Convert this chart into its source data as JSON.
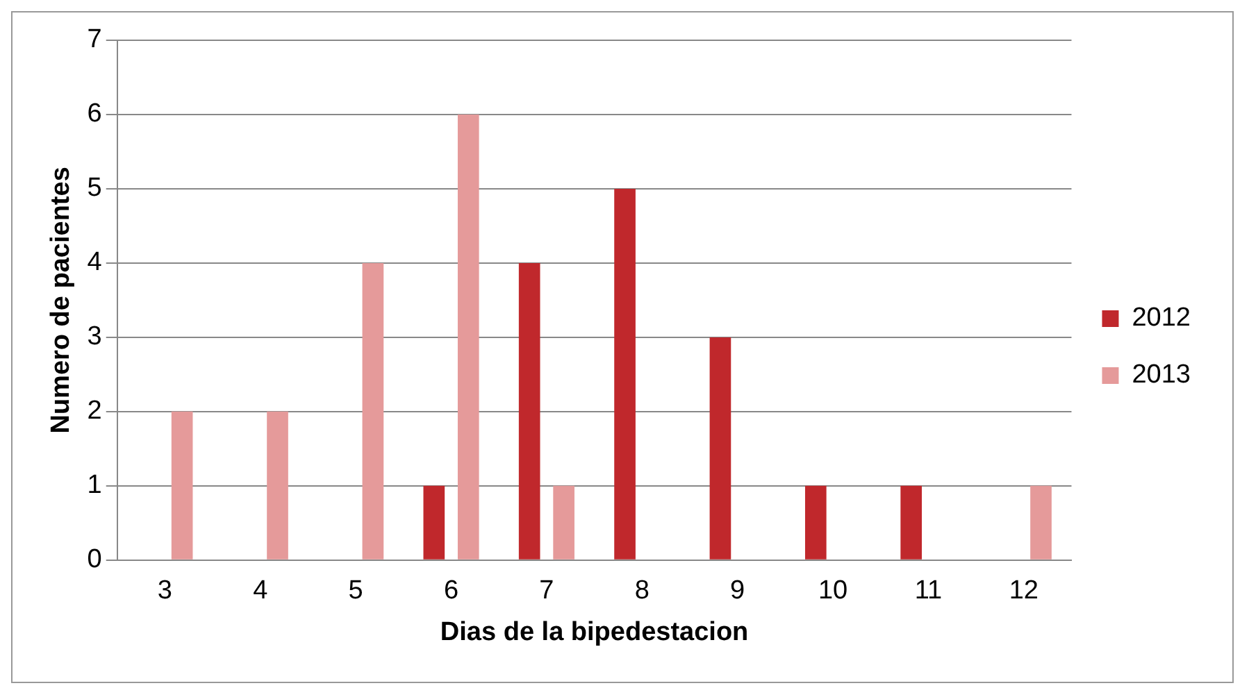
{
  "chart_data": {
    "type": "bar",
    "xlabel": "Dias de la bipedestacion",
    "ylabel": "Numero de pacientes",
    "categories": [
      "3",
      "4",
      "5",
      "6",
      "7",
      "8",
      "9",
      "10",
      "11",
      "12"
    ],
    "series": [
      {
        "name": "2012",
        "color": "#c0282c",
        "values": [
          0,
          0,
          0,
          1,
          4,
          5,
          3,
          1,
          1,
          0
        ]
      },
      {
        "name": "2013",
        "color": "#e59a9a",
        "values": [
          2,
          2,
          4,
          6,
          1,
          0,
          0,
          0,
          0,
          1
        ]
      }
    ],
    "ylim": [
      0,
      7
    ],
    "yticks": [
      0,
      1,
      2,
      3,
      4,
      5,
      6,
      7
    ],
    "grid": "y",
    "legend": "right"
  }
}
